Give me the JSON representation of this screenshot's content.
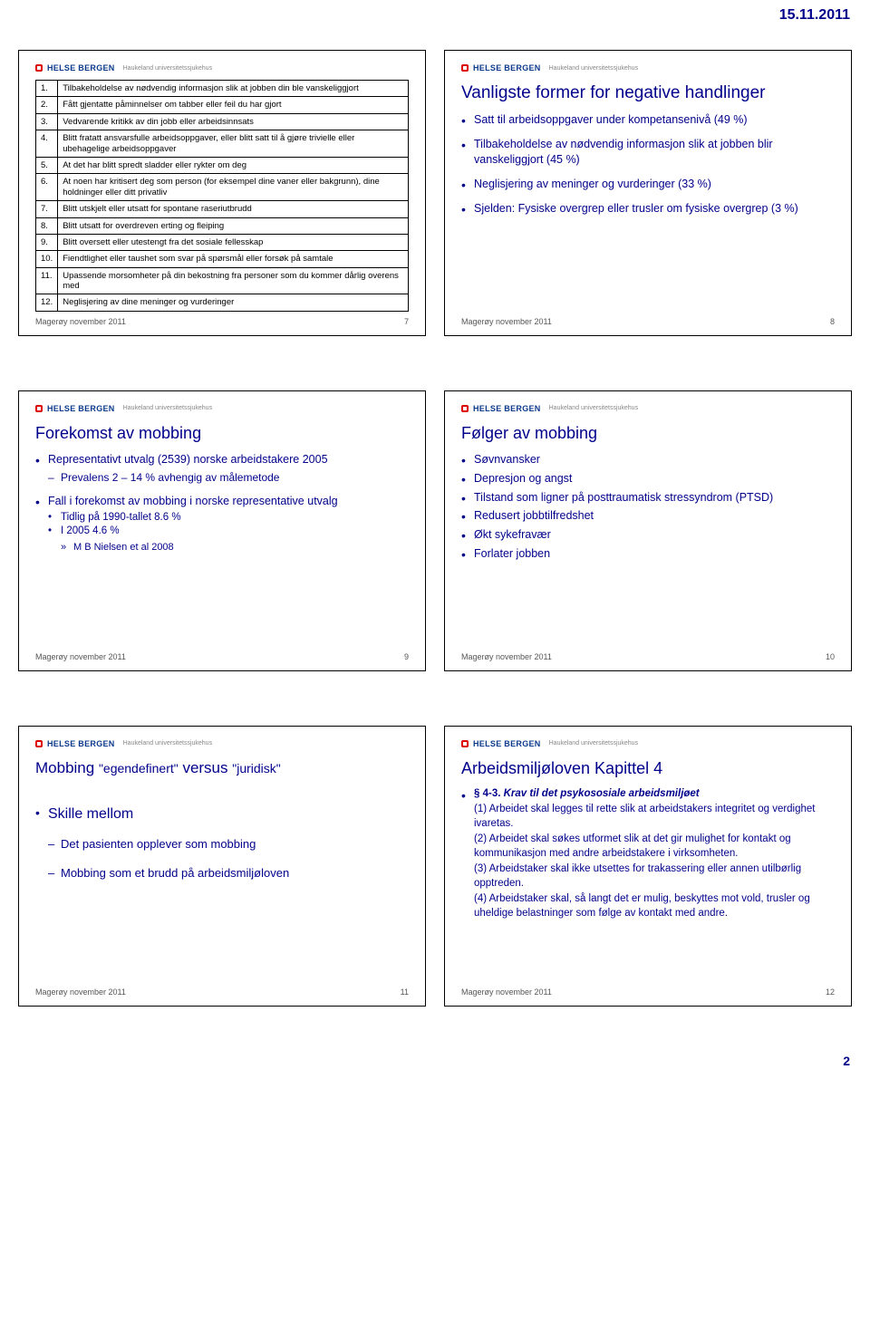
{
  "page": {
    "date": "15.11.2011",
    "number": "2",
    "footer_label": "Magerøy november 2011",
    "logo_text": "HELSE BERGEN",
    "logo_sub": "Haukeland universitetssjukehus"
  },
  "slide7": {
    "items": [
      {
        "n": "1.",
        "t": "Tilbakeholdelse av nødvendig informasjon slik at jobben din ble vanskeliggjort"
      },
      {
        "n": "2.",
        "t": "Fått gjentatte påminnelser om tabber eller feil du har gjort"
      },
      {
        "n": "3.",
        "t": "Vedvarende kritikk av din jobb eller arbeidsinnsats"
      },
      {
        "n": "4.",
        "t": "Blitt fratatt ansvarsfulle arbeidsoppgaver, eller blitt satt til å gjøre trivielle eller ubehagelige arbeidsoppgaver"
      },
      {
        "n": "5.",
        "t": "At det har blitt spredt sladder eller rykter om deg"
      },
      {
        "n": "6.",
        "t": "At noen har kritisert deg som person (for eksempel dine vaner eller bakgrunn), dine holdninger eller ditt privatliv"
      },
      {
        "n": "7.",
        "t": "Blitt utskjelt eller utsatt for spontane raseriutbrudd"
      },
      {
        "n": "8.",
        "t": "Blitt utsatt for overdreven erting og fleiping"
      },
      {
        "n": "9.",
        "t": "Blitt oversett eller utestengt fra det sosiale fellesskap"
      },
      {
        "n": "10.",
        "t": "Fiendtlighet eller taushet som svar på spørsmål eller forsøk på samtale"
      },
      {
        "n": "11.",
        "t": "Upassende morsomheter på din bekostning fra personer som du kommer dårlig overens med"
      },
      {
        "n": "12.",
        "t": "Neglisjering av dine meninger og vurderinger"
      }
    ],
    "slide_no": "7"
  },
  "slide8": {
    "title": "Vanligste former for negative handlinger",
    "bullets": [
      "Satt til arbeidsoppgaver under kompetansenivå (49 %)",
      "Tilbakeholdelse av nødvendig informasjon slik at jobben blir vanskeliggjort (45 %)",
      "Neglisjering av meninger og vurderinger (33 %)",
      "Sjelden: Fysiske overgrep eller trusler om fysiske overgrep (3 %)"
    ],
    "slide_no": "8"
  },
  "slide9": {
    "title": "Forekomst av mobbing",
    "b1": "Representativt utvalg (2539) norske arbeidstakere 2005",
    "b1s1": "Prevalens  2 – 14 % avhengig av målemetode",
    "b2": "Fall i forekomst av mobbing i norske representative utvalg",
    "b2s1": "Tidlig på 1990-tallet  8.6 %",
    "b2s2": "I 2005 4.6 %",
    "b2s2a": "M B Nielsen et al 2008",
    "slide_no": "9"
  },
  "slide10": {
    "title": "Følger av mobbing",
    "bullets": [
      "Søvnvansker",
      "Depresjon og angst",
      "Tilstand som ligner på posttraumatisk stressyndrom (PTSD)",
      "Redusert jobbtilfredshet",
      "Økt sykefravær",
      "Forlater jobben"
    ],
    "slide_no": "10"
  },
  "slide11": {
    "title_a": "Mobbing ",
    "title_b": "\"egendefinert\"",
    "title_c": " versus ",
    "title_d": "\"juridisk\"",
    "b1": "Skille mellom",
    "b1s1": "Det pasienten opplever som mobbing",
    "b1s2": "Mobbing som et brudd på arbeidsmiljøloven",
    "slide_no": "11"
  },
  "slide12": {
    "title": "Arbeidsmiljøloven Kapittel 4",
    "lead_sym": "§ 4-3.",
    "lead_txt": " Krav til det psykososiale arbeidsmiljøet",
    "p1": "(1) Arbeidet skal legges til rette slik at arbeidstakers integritet og verdighet ivaretas.",
    "p2": "(2) Arbeidet skal søkes utformet slik at det gir mulighet for kontakt og kommunikasjon med andre arbeidstakere i virksomheten.",
    "p3": "(3) Arbeidstaker skal ikke utsettes for trakassering eller annen utilbørlig opptreden.",
    "p4": "(4) Arbeidstaker skal, så langt det er mulig, beskyttes mot vold, trusler og uheldige belastninger som følge av kontakt med andre.",
    "slide_no": "12"
  }
}
